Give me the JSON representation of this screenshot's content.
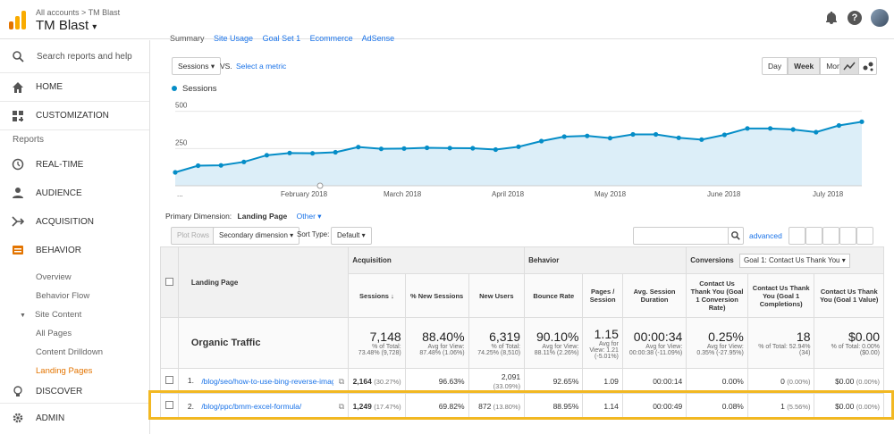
{
  "header": {
    "breadcrumb": "All accounts > TM Blast",
    "account": "TM Blast",
    "caret": "▾",
    "help_glyph": "?",
    "brand_colors": [
      "#f9ab00",
      "#e37400"
    ]
  },
  "sidebar": {
    "search_placeholder": "Search reports and help",
    "items": [
      {
        "label": "HOME",
        "icon": "home-icon"
      },
      {
        "label": "CUSTOMIZATION",
        "icon": "dashboard-icon"
      }
    ],
    "reports_label": "Reports",
    "report_items": [
      {
        "label": "REAL-TIME",
        "icon": "clock-icon"
      },
      {
        "label": "AUDIENCE",
        "icon": "person-icon"
      },
      {
        "label": "ACQUISITION",
        "icon": "acquisition-icon"
      },
      {
        "label": "BEHAVIOR",
        "icon": "behavior-icon"
      }
    ],
    "behavior_sub": [
      "Overview",
      "Behavior Flow",
      "Site Content",
      "All Pages",
      "Content Drilldown",
      "Landing Pages"
    ],
    "site_content_tri": "▼",
    "discover": "DISCOVER",
    "admin": "ADMIN",
    "active_color": "#e37400"
  },
  "main": {
    "tabs": [
      "Summary",
      "Site Usage",
      "Goal Set 1",
      "Ecommerce",
      "AdSense"
    ],
    "metric_select": "Sessions",
    "metric_caret": "▾",
    "vs": "VS.",
    "select_metric": "Select a metric",
    "period_buttons": [
      "Day",
      "Week",
      "Month"
    ],
    "active_period": "Week",
    "legend": "Sessions",
    "primary_dimension_label": "Primary Dimension:",
    "primary_dimension": "Landing Page",
    "other": "Other ▾",
    "plot_rows": "Plot Rows",
    "secondary_dimension": "Secondary dimension",
    "sort_type_label": "Sort Type:",
    "sort_type": "Default",
    "advanced": "advanced",
    "search_glyph": "🔍"
  },
  "chart_data": {
    "type": "area",
    "series": [
      {
        "name": "Sessions",
        "values": [
          90,
          135,
          137,
          160,
          205,
          220,
          218,
          225,
          260,
          248,
          250,
          255,
          253,
          252,
          243,
          262,
          300,
          330,
          335,
          320,
          345,
          345,
          322,
          310,
          342,
          385,
          385,
          378,
          360,
          405,
          430
        ]
      }
    ],
    "yticks": [
      "250",
      "500"
    ],
    "ylim": [
      0,
      600
    ],
    "xticks": [
      "...",
      "February 2018",
      "March 2018",
      "April 2018",
      "May 2018",
      "June 2018",
      "July 2018"
    ],
    "color": "#058dc7",
    "fill": "#dceef8"
  },
  "table": {
    "groups": {
      "acquisition": "Acquisition",
      "behavior": "Behavior",
      "conversions": "Conversions",
      "goal_select": "Goal 1: Contact Us Thank You"
    },
    "landing_page_header": "Landing Page",
    "columns": [
      "Sessions",
      "% New Sessions",
      "New Users",
      "Bounce Rate",
      "Pages / Session",
      "Avg. Session Duration",
      "Contact Us Thank You (Goal 1 Conversion Rate)",
      "Contact Us Thank You (Goal 1 Completions)",
      "Contact Us Thank You (Goal 1 Value)"
    ],
    "sort_arrow": "↓",
    "total": {
      "label": "Organic Traffic",
      "values": [
        "7,148",
        "88.40%",
        "6,319",
        "90.10%",
        "1.15",
        "00:00:34",
        "0.25%",
        "18",
        "$0.00"
      ],
      "notes": [
        "% of Total: 73.48% (9,728)",
        "Avg for View: 87.48% (1.06%)",
        "% of Total: 74.25% (8,510)",
        "Avg for View: 88.11% (2.26%)",
        "Avg for View: 1.21 (-5.01%)",
        "Avg for View: 00:00:38 (-11.09%)",
        "Avg for View: 0.35% (-27.95%)",
        "% of Total: 52.94% (34)",
        "% of Total: 0.00% ($0.00)"
      ]
    },
    "rows": [
      {
        "num": "1.",
        "url": "/blog/seo/how-to-use-bing-reverse-image-search/",
        "sessions": "2,164",
        "sessions_pct": "(30.27%)",
        "new_sessions": "96.63%",
        "new_users": "2,091",
        "new_users_pct": "(33.09%)",
        "bounce": "92.65%",
        "pages": "1.09",
        "duration": "00:00:14",
        "conv_rate": "0.00%",
        "completions": "0",
        "completions_pct": "(0.00%)",
        "value": "$0.00",
        "value_pct": "(0.00%)"
      },
      {
        "num": "2.",
        "url": "/blog/ppc/bmm-excel-formula/",
        "sessions": "1,249",
        "sessions_pct": "(17.47%)",
        "new_sessions": "69.82%",
        "new_users": "872",
        "new_users_pct": "(13.80%)",
        "bounce": "88.95%",
        "pages": "1.14",
        "duration": "00:00:49",
        "conv_rate": "0.08%",
        "completions": "1",
        "completions_pct": "(5.56%)",
        "value": "$0.00",
        "value_pct": "(0.00%)"
      }
    ],
    "highlight_color": "#f2b822"
  }
}
